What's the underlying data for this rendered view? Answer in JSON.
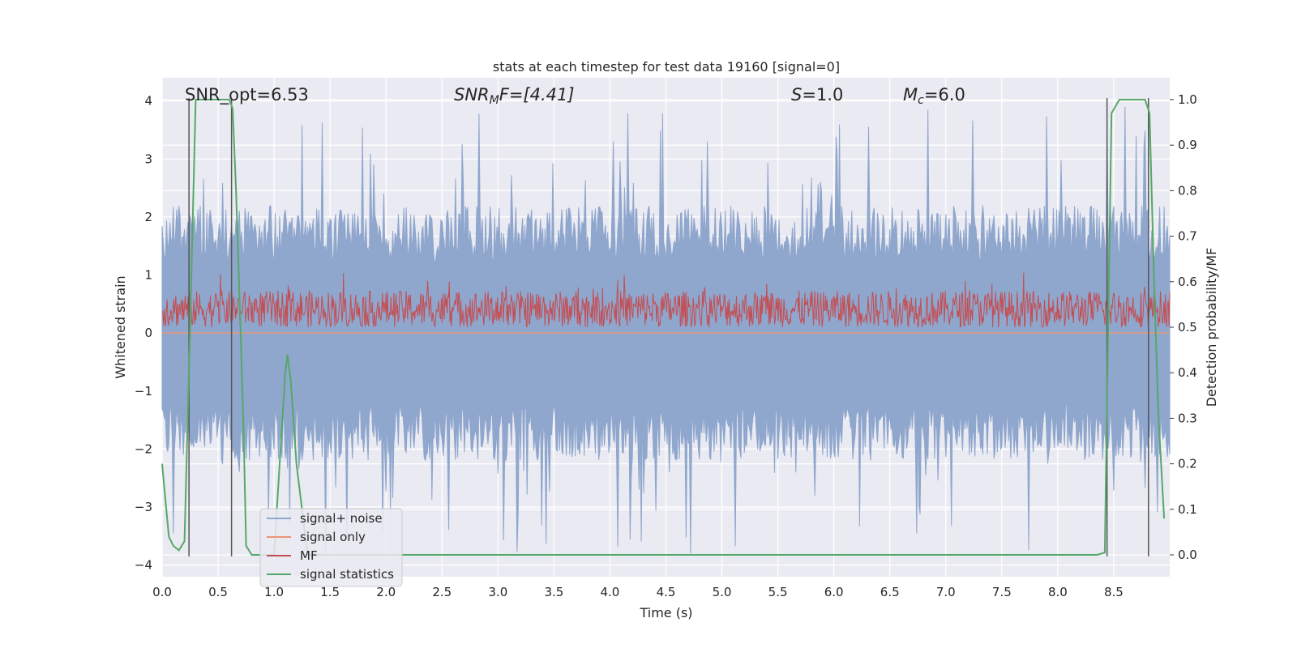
{
  "chart_data": {
    "type": "line",
    "title": "stats at each timestep for test data 19160 [signal=0]",
    "xlabel": "Time (s)",
    "ylabel": "Whitened strain",
    "y2label": "Detection probability/MF",
    "xlim": [
      0.0,
      9.0
    ],
    "ylim": [
      -4.2,
      4.4
    ],
    "y2lim": [
      -0.048,
      1.048
    ],
    "xticks": [
      "0.0",
      "0.5",
      "1.0",
      "1.5",
      "2.0",
      "2.5",
      "3.0",
      "3.5",
      "4.0",
      "4.5",
      "5.0",
      "5.5",
      "6.0",
      "6.5",
      "7.0",
      "7.5",
      "8.0",
      "8.5"
    ],
    "yticks": [
      "4",
      "3",
      "2",
      "1",
      "0",
      "−1",
      "−2",
      "−3",
      "−4"
    ],
    "y2ticks": [
      "1.0",
      "0.9",
      "0.8",
      "0.7",
      "0.6",
      "0.5",
      "0.4",
      "0.3",
      "0.2",
      "0.1",
      "0.0"
    ],
    "grid": true,
    "legend_position": "lower-left",
    "annotations": {
      "snr_opt_label": "SNR_opt=6.53",
      "snr_mf_base": "SNR",
      "snr_mf_sub": "M",
      "snr_mf_rest": "F=[4.41]",
      "s_base": "S",
      "s_rest": "=1.0",
      "mc_base": "M",
      "mc_sub": "c",
      "mc_rest": "=6.0"
    },
    "series": [
      {
        "name": "signal+ noise",
        "axis": "left",
        "style": "dense-noise",
        "envelope_upper_typical": 2.2,
        "envelope_lower_typical": -2.2,
        "peak_max": 3.9,
        "peak_min": -3.85
      },
      {
        "name": "signal only",
        "axis": "left",
        "x": [
          0.0,
          9.0
        ],
        "values": [
          0.0,
          0.0
        ]
      },
      {
        "name": "MF",
        "axis": "right",
        "style": "dense-noise",
        "baseline": 0.5,
        "typical_max": 0.58,
        "peak_max": 0.62
      },
      {
        "name": "signal statistics",
        "axis": "right",
        "x": [
          0.0,
          0.03,
          0.06,
          0.1,
          0.15,
          0.2,
          0.25,
          0.3,
          0.35,
          0.45,
          0.55,
          0.6,
          0.63,
          0.66,
          0.7,
          0.73,
          0.75,
          0.8,
          0.85,
          0.9,
          1.0,
          1.05,
          1.1,
          1.12,
          1.15,
          1.2,
          1.25,
          1.3,
          1.4,
          2.0,
          3.0,
          4.0,
          5.0,
          6.0,
          7.0,
          8.0,
          8.35,
          8.42,
          8.45,
          8.48,
          8.55,
          8.6,
          8.7,
          8.78,
          8.82,
          8.86,
          8.9,
          8.95
        ],
        "values": [
          0.2,
          0.12,
          0.04,
          0.02,
          0.01,
          0.03,
          0.5,
          1.0,
          1.0,
          1.0,
          1.0,
          1.0,
          0.98,
          0.8,
          0.5,
          0.25,
          0.02,
          0.0,
          0.0,
          0.0,
          0.0,
          0.2,
          0.4,
          0.44,
          0.38,
          0.2,
          0.1,
          0.0,
          0.0,
          0.0,
          0.0,
          0.0,
          0.0,
          0.0,
          0.0,
          0.0,
          0.0,
          0.005,
          0.5,
          0.97,
          1.0,
          1.0,
          1.0,
          1.0,
          0.97,
          0.6,
          0.3,
          0.08
        ]
      }
    ],
    "vlines": [
      {
        "x": 0.24,
        "ymin": -3.85,
        "ymax": 4.05
      },
      {
        "x": 0.62,
        "ymin": -3.85,
        "ymax": 4.05
      },
      {
        "x": 8.44,
        "ymin": -3.85,
        "ymax": 4.05
      },
      {
        "x": 8.81,
        "ymin": -3.85,
        "ymax": 4.05
      }
    ],
    "colors": {
      "background": "#eaeaf2",
      "grid": "#ffffff",
      "noise": "#8fa6cd",
      "signal_only": "#e99675",
      "mf": "#c44e52",
      "stats": "#55a868",
      "vline": "#555555"
    }
  }
}
